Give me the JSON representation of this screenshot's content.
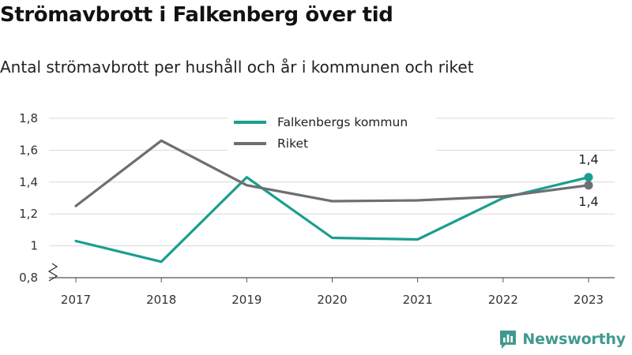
{
  "title": "Strömavbrott i Falkenberg över tid",
  "subtitle": "Antal strömavbrott per hushåll och år i kommunen och riket",
  "brand": {
    "name": "Newsworthy",
    "icon": "newsworthy-logo-icon",
    "color": "#3f9a8e"
  },
  "chart_data": {
    "type": "line",
    "x": [
      "2017",
      "2018",
      "2019",
      "2020",
      "2021",
      "2022",
      "2023"
    ],
    "series": [
      {
        "name": "Falkenbergs kommun",
        "color": "#1a9e8f",
        "values": [
          1.03,
          0.9,
          1.43,
          1.05,
          1.04,
          1.3,
          1.43
        ],
        "end_label": "1,4"
      },
      {
        "name": "Riket",
        "color": "#6e6e73",
        "values": [
          1.25,
          1.66,
          1.38,
          1.28,
          1.285,
          1.31,
          1.38
        ],
        "end_label": "1,4"
      }
    ],
    "yticks": [
      0.8,
      1,
      1.2,
      1.4,
      1.6,
      1.8
    ],
    "ytick_labels": [
      "0,8",
      "1",
      "1,2",
      "1,4",
      "1,6",
      "1,8"
    ],
    "ylim": [
      0.8,
      1.8
    ],
    "y_axis_break": true,
    "grid": true,
    "legend_position": "top-center",
    "xlabel": "",
    "ylabel": ""
  }
}
